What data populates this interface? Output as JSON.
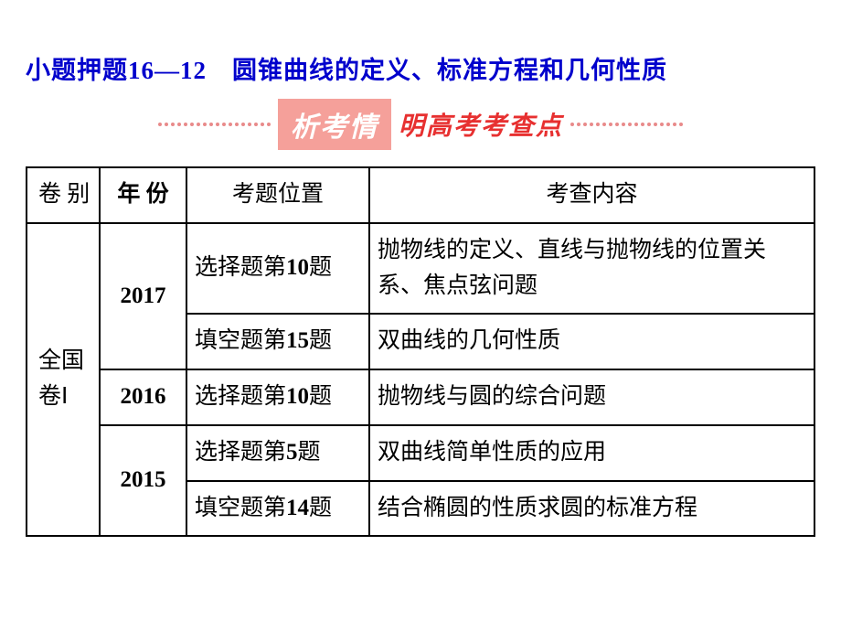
{
  "title": "小题押题16—12　圆锥曲线的定义、标准方程和几何性质",
  "banner": {
    "box_text": "析考情",
    "side_text": "明高考考查点",
    "box_bg": "#f5a09a",
    "box_color": "#ffffff",
    "side_color": "#e73030",
    "dot_color": "#e88a8a"
  },
  "table": {
    "headers": [
      "卷 别",
      "年 份",
      "考题位置",
      "考查内容"
    ],
    "paper_label": "全国卷Ⅰ",
    "rows": [
      {
        "year": "2017",
        "position": "选择题第10题",
        "content": "抛物线的定义、直线与抛物线的位置关系、焦点弦问题"
      },
      {
        "position": "填空题第15题",
        "content": "双曲线的几何性质"
      },
      {
        "year": "2016",
        "position": "选择题第10题",
        "content": "抛物线与圆的综合问题"
      },
      {
        "year": "2015",
        "position": "选择题第5题",
        "content": "双曲线简单性质的应用"
      },
      {
        "position": "填空题第14题",
        "content": "结合椭圆的性质求圆的标准方程"
      }
    ]
  },
  "colors": {
    "title_color": "#0000cc",
    "border_color": "#000000",
    "background": "#ffffff"
  }
}
